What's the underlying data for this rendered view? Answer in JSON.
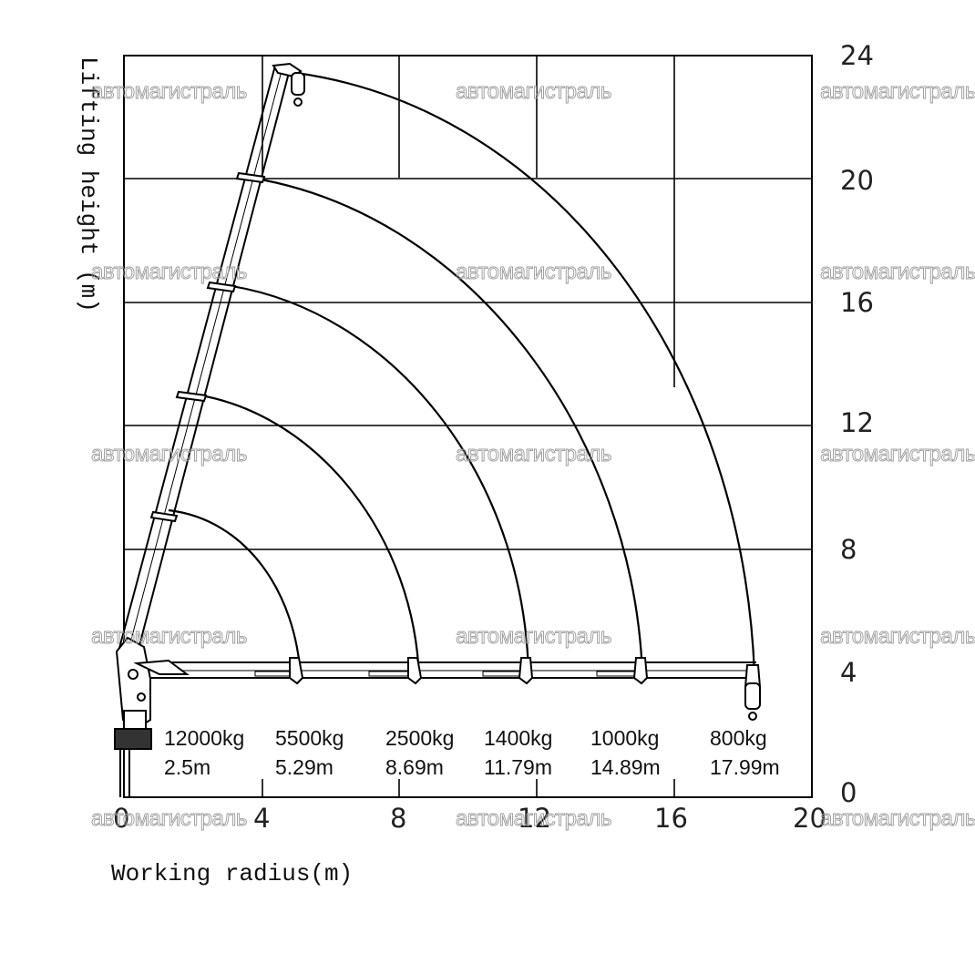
{
  "diagram": {
    "x_label": "Working radius(m)",
    "y_label": "Lifting height (m)",
    "x_ticks": [
      "0",
      "4",
      "8",
      "12",
      "16",
      "20"
    ],
    "y_ticks": [
      "0",
      "4",
      "8",
      "12",
      "16",
      "20",
      "24"
    ],
    "loads": [
      {
        "weight": "12000kg",
        "radius": "2.5m"
      },
      {
        "weight": "5500kg",
        "radius": "5.29m"
      },
      {
        "weight": "2500kg",
        "radius": "8.69m"
      },
      {
        "weight": "1400kg",
        "radius": "11.79m"
      },
      {
        "weight": "1000kg",
        "radius": "14.89m"
      },
      {
        "weight": "800kg",
        "radius": "17.99m"
      }
    ],
    "watermark": "автомагистраль",
    "colors": {
      "line": "#000000",
      "grid": "#000000",
      "watermark": "#9a9a9a"
    }
  }
}
